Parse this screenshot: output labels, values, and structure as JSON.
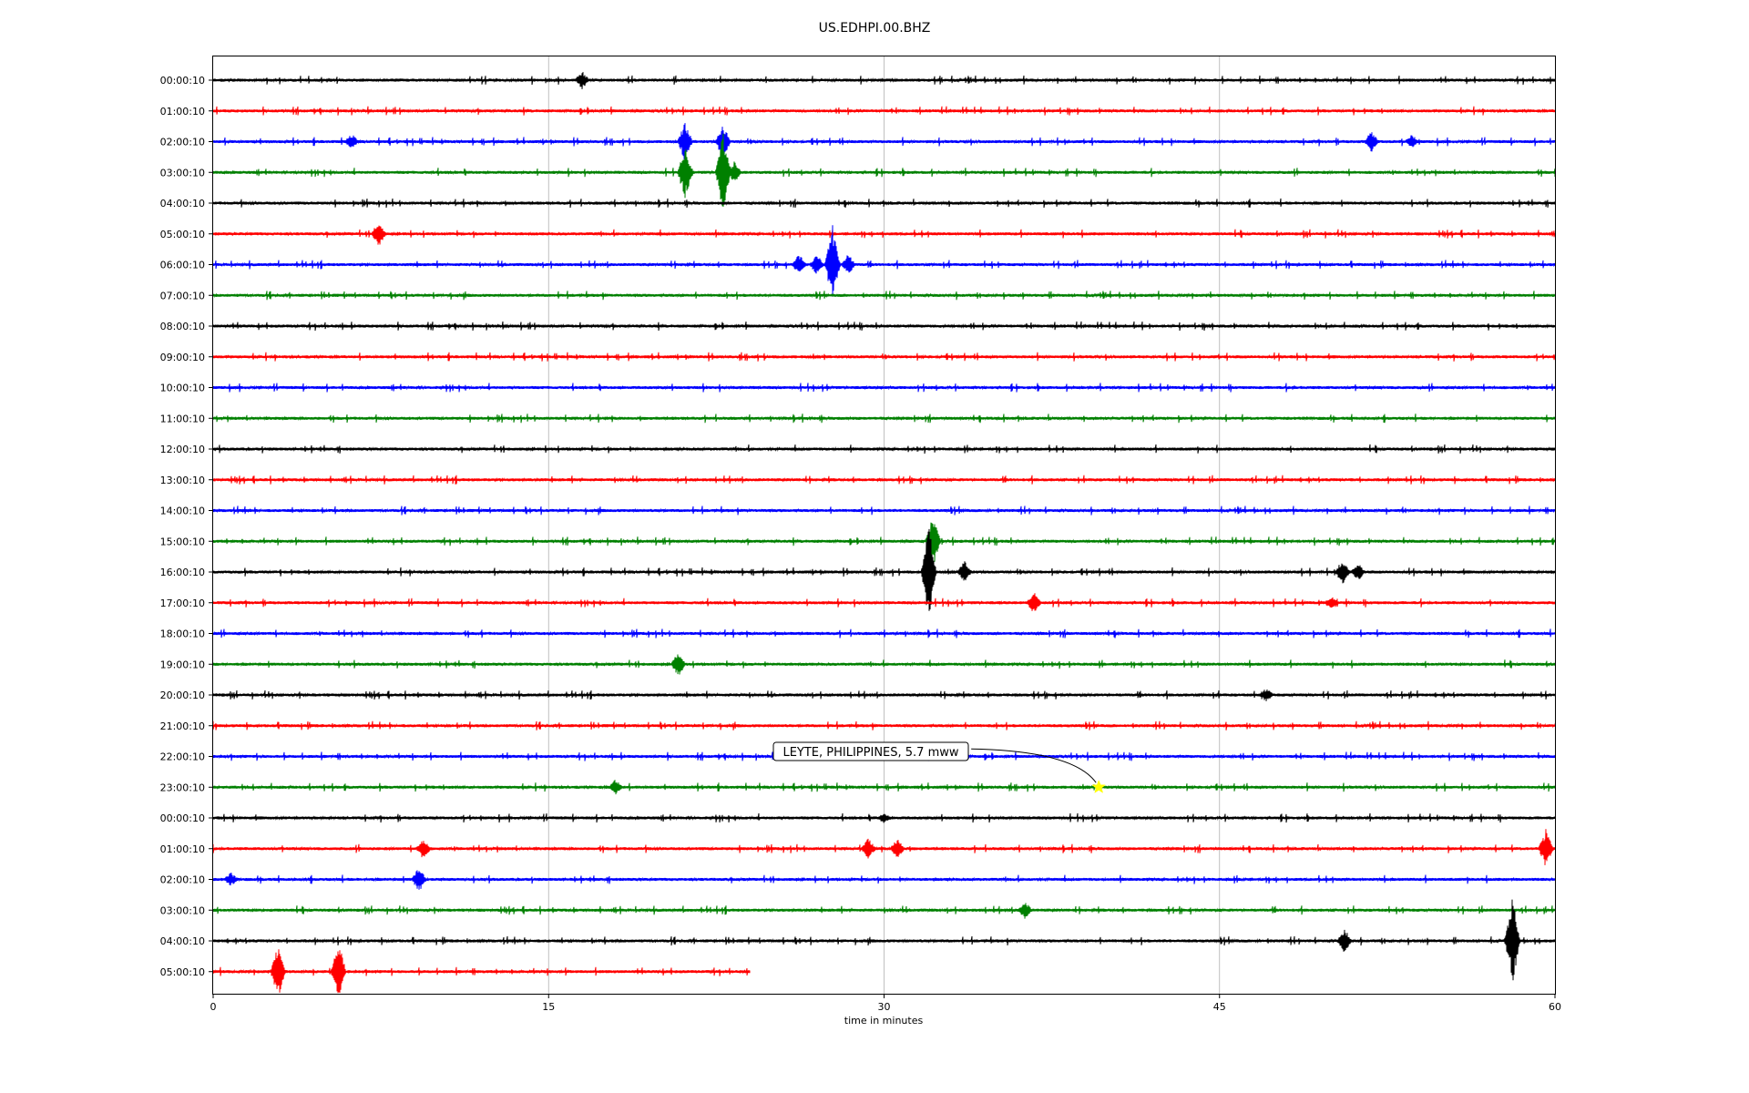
{
  "chart_data": {
    "type": "line",
    "title": "US.EDHPI.00.BHZ",
    "xlabel": "time in minutes",
    "ylabel": "",
    "xlim": [
      0,
      60
    ],
    "x_ticks": [
      "0",
      "15",
      "30",
      "45",
      "60"
    ],
    "grid": "vertical",
    "row_labels": [
      "00:00:10",
      "01:00:10",
      "02:00:10",
      "03:00:10",
      "04:00:10",
      "05:00:10",
      "06:00:10",
      "07:00:10",
      "08:00:10",
      "09:00:10",
      "10:00:10",
      "11:00:10",
      "12:00:10",
      "13:00:10",
      "14:00:10",
      "15:00:10",
      "16:00:10",
      "17:00:10",
      "18:00:10",
      "19:00:10",
      "20:00:10",
      "21:00:10",
      "22:00:10",
      "23:00:10",
      "00:00:10",
      "01:00:10",
      "02:00:10",
      "03:00:10",
      "04:00:10",
      "05:00:10"
    ],
    "colors": [
      "#000000",
      "#ff0000",
      "#0000ff",
      "#008000"
    ],
    "last_row_end_minute": 24,
    "events": [
      {
        "row": 0,
        "minute": 16.5,
        "amp": 10
      },
      {
        "row": 2,
        "minute": 6.2,
        "amp": 9
      },
      {
        "row": 2,
        "minute": 21.1,
        "amp": 22
      },
      {
        "row": 2,
        "minute": 22.8,
        "amp": 20
      },
      {
        "row": 2,
        "minute": 51.8,
        "amp": 12
      },
      {
        "row": 2,
        "minute": 53.6,
        "amp": 8
      },
      {
        "row": 3,
        "minute": 21.1,
        "amp": 30
      },
      {
        "row": 3,
        "minute": 22.8,
        "amp": 45
      },
      {
        "row": 3,
        "minute": 23.3,
        "amp": 12
      },
      {
        "row": 5,
        "minute": 7.4,
        "amp": 14
      },
      {
        "row": 6,
        "minute": 26.2,
        "amp": 12
      },
      {
        "row": 6,
        "minute": 27.0,
        "amp": 12
      },
      {
        "row": 6,
        "minute": 27.7,
        "amp": 45
      },
      {
        "row": 6,
        "minute": 28.4,
        "amp": 12
      },
      {
        "row": 15,
        "minute": 32.2,
        "amp": 30
      },
      {
        "row": 16,
        "minute": 32.0,
        "amp": 55
      },
      {
        "row": 16,
        "minute": 33.6,
        "amp": 12
      },
      {
        "row": 16,
        "minute": 50.5,
        "amp": 14
      },
      {
        "row": 16,
        "minute": 51.2,
        "amp": 10
      },
      {
        "row": 17,
        "minute": 36.7,
        "amp": 12
      },
      {
        "row": 17,
        "minute": 50.0,
        "amp": 8
      },
      {
        "row": 19,
        "minute": 20.8,
        "amp": 14
      },
      {
        "row": 20,
        "minute": 47.1,
        "amp": 8
      },
      {
        "row": 23,
        "minute": 18.0,
        "amp": 9
      },
      {
        "row": 24,
        "minute": 30.0,
        "amp": 6
      },
      {
        "row": 25,
        "minute": 9.4,
        "amp": 12
      },
      {
        "row": 25,
        "minute": 29.3,
        "amp": 12
      },
      {
        "row": 25,
        "minute": 30.6,
        "amp": 12
      },
      {
        "row": 25,
        "minute": 59.6,
        "amp": 22
      },
      {
        "row": 26,
        "minute": 0.8,
        "amp": 8
      },
      {
        "row": 26,
        "minute": 9.2,
        "amp": 14
      },
      {
        "row": 27,
        "minute": 36.3,
        "amp": 10
      },
      {
        "row": 28,
        "minute": 50.6,
        "amp": 14
      },
      {
        "row": 28,
        "minute": 58.1,
        "amp": 48
      },
      {
        "row": 29,
        "minute": 2.9,
        "amp": 30
      },
      {
        "row": 29,
        "minute": 5.6,
        "amp": 35
      }
    ],
    "annotation": {
      "text": "LEYTE, PHILIPPINES, 5.7 mww",
      "row": 23,
      "minute": 39.6,
      "marker": "star",
      "marker_color": "#ffff00"
    }
  }
}
